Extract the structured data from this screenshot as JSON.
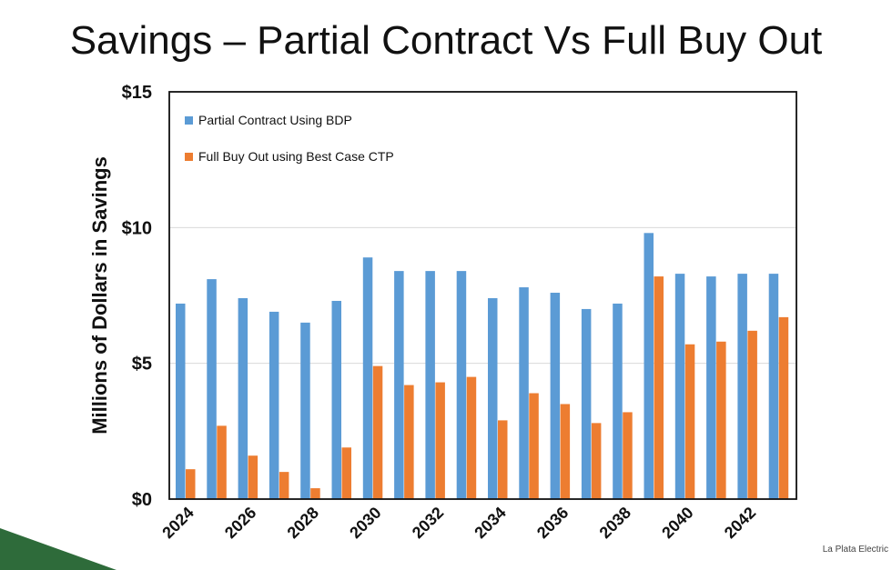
{
  "slide": {
    "title": "Savings – Partial Contract Vs Full Buy Out",
    "footer": "La Plata Electric"
  },
  "colors": {
    "series_a": "#5B9BD5",
    "series_b": "#ED7D31",
    "accent_wedge": "#2E6B3A"
  },
  "chart_data": {
    "type": "bar",
    "title": "",
    "xlabel": "",
    "ylabel": "Millions of Dollars in Savings",
    "ylim": [
      0,
      15
    ],
    "yticks": [
      {
        "value": 0,
        "label": "$0"
      },
      {
        "value": 5,
        "label": "$5"
      },
      {
        "value": 10,
        "label": "$10"
      },
      {
        "value": 15,
        "label": "$15"
      }
    ],
    "categories": [
      "2024",
      "2025",
      "2026",
      "2027",
      "2028",
      "2029",
      "2030",
      "2031",
      "2032",
      "2033",
      "2034",
      "2035",
      "2036",
      "2037",
      "2038",
      "2039",
      "2040",
      "2041",
      "2042",
      "2043"
    ],
    "x_tick_labels": [
      "2024",
      "2026",
      "2028",
      "2030",
      "2032",
      "2034",
      "2036",
      "2038",
      "2040",
      "2042"
    ],
    "grid": true,
    "legend_position": "top-left",
    "series": [
      {
        "name": "Partial Contract Using BDP",
        "values": [
          7.2,
          8.1,
          7.4,
          6.9,
          6.5,
          7.3,
          8.9,
          8.4,
          8.4,
          8.4,
          7.4,
          7.8,
          7.6,
          7.0,
          7.2,
          9.8,
          8.3,
          8.2,
          8.3,
          8.3
        ]
      },
      {
        "name": "Full Buy Out using Best Case CTP",
        "values": [
          1.1,
          2.7,
          1.6,
          1.0,
          0.4,
          1.9,
          4.9,
          4.2,
          4.3,
          4.5,
          2.9,
          3.9,
          3.5,
          2.8,
          3.2,
          8.2,
          5.7,
          5.8,
          6.2,
          6.7
        ]
      }
    ]
  }
}
